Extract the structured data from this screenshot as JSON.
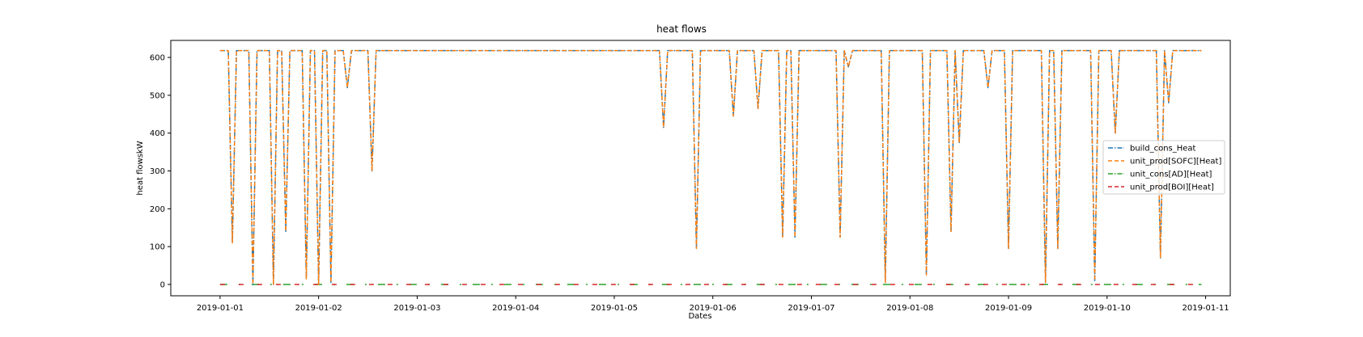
{
  "chart_data": {
    "type": "line",
    "title": "heat flows",
    "xlabel": "Dates",
    "ylabel": "heat flowskW",
    "xlim": [
      "2018-12-31T12:00",
      "2019-01-11T06:00"
    ],
    "ylim": [
      -30,
      645
    ],
    "x_ticks": [
      "2019-01-01",
      "2019-01-02",
      "2019-01-03",
      "2019-01-04",
      "2019-01-05",
      "2019-01-06",
      "2019-01-07",
      "2019-01-08",
      "2019-01-09",
      "2019-01-10",
      "2019-01-11"
    ],
    "y_ticks": [
      0,
      100,
      200,
      300,
      400,
      500,
      600
    ],
    "x_range": [
      "2019-01-01T00:00",
      "2019-01-10T23:00"
    ],
    "baseline_value": 618,
    "dips": [
      {
        "t": "2019-01-01T03:00",
        "v": 110
      },
      {
        "t": "2019-01-01T08:00",
        "v": 0
      },
      {
        "t": "2019-01-01T13:00",
        "v": 0
      },
      {
        "t": "2019-01-01T16:00",
        "v": 140
      },
      {
        "t": "2019-01-01T21:00",
        "v": 15
      },
      {
        "t": "2019-01-02T00:00",
        "v": 0
      },
      {
        "t": "2019-01-02T03:00",
        "v": 5
      },
      {
        "t": "2019-01-02T07:00",
        "v": 520
      },
      {
        "t": "2019-01-02T13:00",
        "v": 300
      },
      {
        "t": "2019-01-05T12:00",
        "v": 415
      },
      {
        "t": "2019-01-05T20:00",
        "v": 95
      },
      {
        "t": "2019-01-06T05:00",
        "v": 445
      },
      {
        "t": "2019-01-06T11:00",
        "v": 465
      },
      {
        "t": "2019-01-06T17:00",
        "v": 125
      },
      {
        "t": "2019-01-06T20:00",
        "v": 125
      },
      {
        "t": "2019-01-07T07:00",
        "v": 125
      },
      {
        "t": "2019-01-07T09:00",
        "v": 575
      },
      {
        "t": "2019-01-07T18:00",
        "v": 5
      },
      {
        "t": "2019-01-08T04:00",
        "v": 25
      },
      {
        "t": "2019-01-08T10:00",
        "v": 140
      },
      {
        "t": "2019-01-08T12:00",
        "v": 375
      },
      {
        "t": "2019-01-08T19:00",
        "v": 520
      },
      {
        "t": "2019-01-09T00:00",
        "v": 95
      },
      {
        "t": "2019-01-09T09:00",
        "v": 5
      },
      {
        "t": "2019-01-09T12:00",
        "v": 95
      },
      {
        "t": "2019-01-09T21:00",
        "v": 10
      },
      {
        "t": "2019-01-10T02:00",
        "v": 400
      },
      {
        "t": "2019-01-10T13:00",
        "v": 70
      },
      {
        "t": "2019-01-10T15:00",
        "v": 480
      }
    ],
    "series": [
      {
        "name": "build_cons_Heat",
        "color": "#1f77b4",
        "style": "dashdot",
        "profile": "heat_profile"
      },
      {
        "name": "unit_prod[SOFC][Heat]",
        "color": "#ff7f0e",
        "style": "dashed",
        "profile": "heat_profile"
      },
      {
        "name": "unit_cons[AD][Heat]",
        "color": "#2ca02c",
        "style": "dashdot",
        "value": 0
      },
      {
        "name": "unit_prod[BOI][Heat]",
        "color": "#d62728",
        "style": "dashed",
        "value": 0
      }
    ],
    "legend_position": "right"
  }
}
